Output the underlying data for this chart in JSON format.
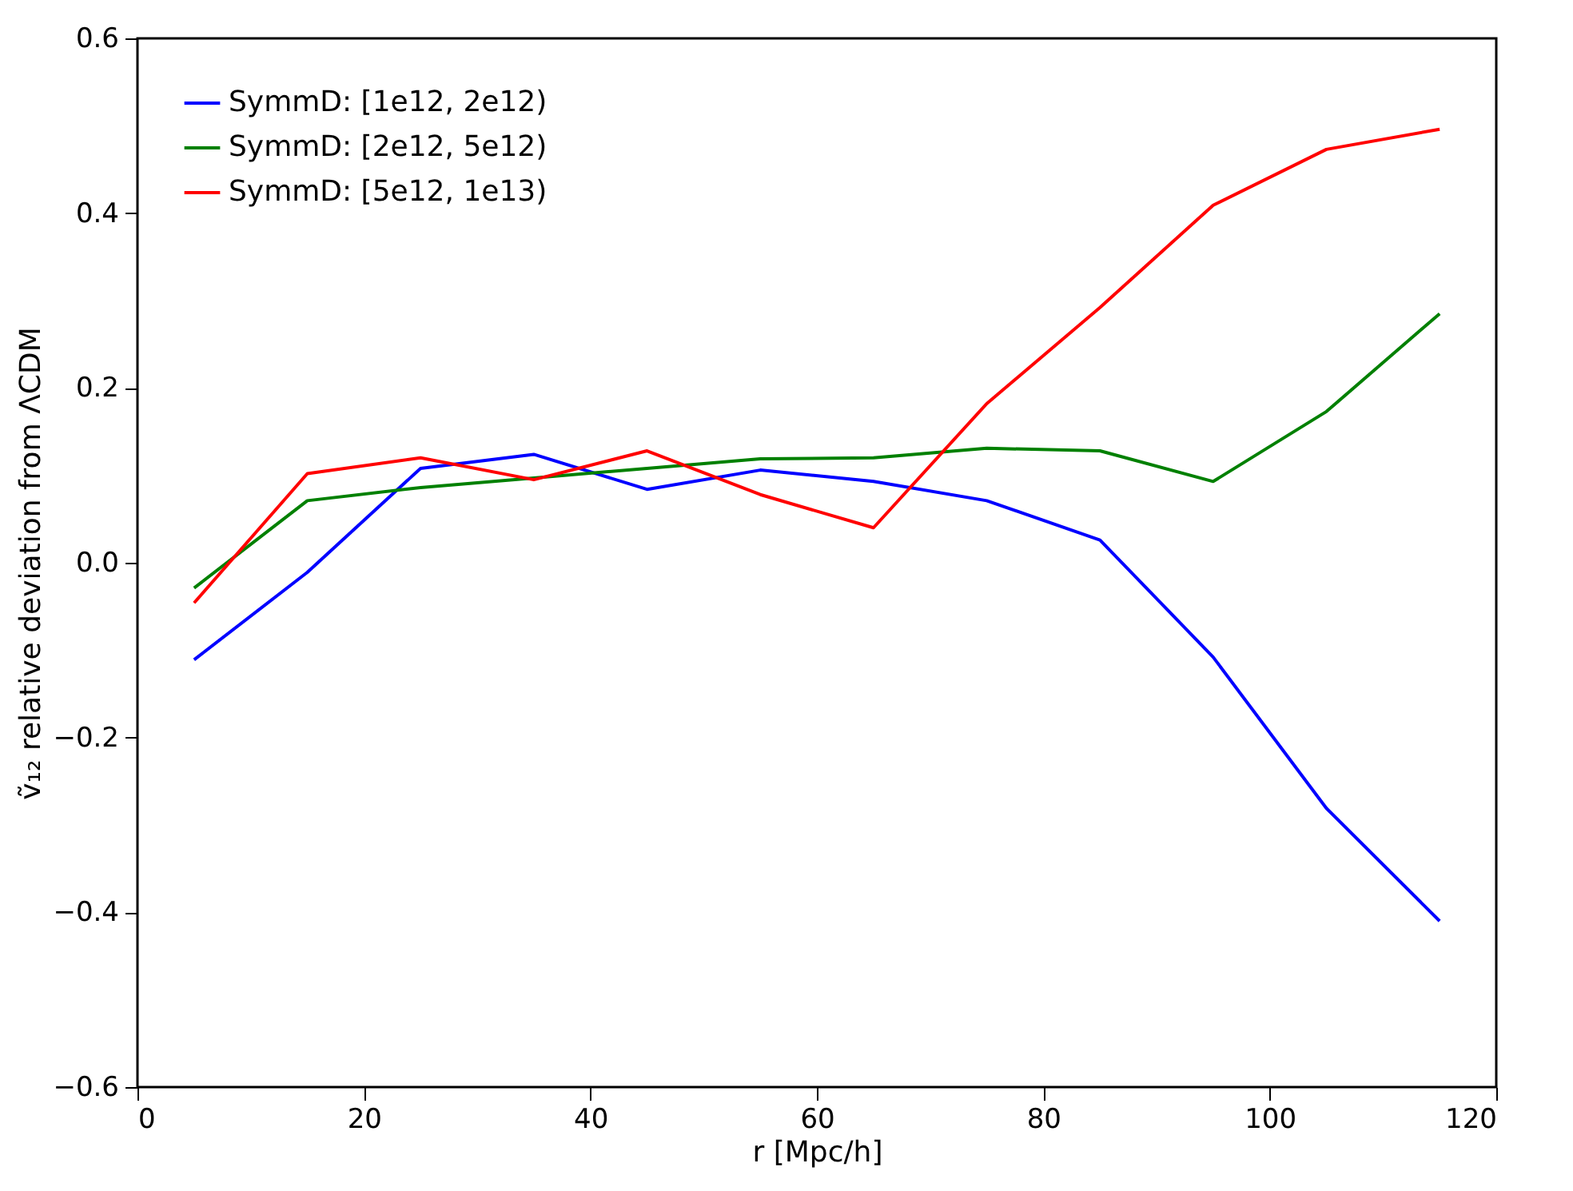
{
  "chart_data": {
    "type": "line",
    "xlabel": "r [Mpc/h]",
    "ylabel": "ṽ₁₂ relative deviation from ΛCDM",
    "x": [
      5,
      15,
      25,
      35,
      45,
      55,
      65,
      75,
      85,
      95,
      105,
      115
    ],
    "series": [
      {
        "name": "SymmD: [1e12, 2e12)",
        "color": "#0000ff",
        "values": [
          -0.111,
          -0.011,
          0.108,
          0.124,
          0.084,
          0.106,
          0.093,
          0.071,
          0.026,
          -0.108,
          -0.281,
          -0.41
        ]
      },
      {
        "name": "SymmD: [2e12, 5e12)",
        "color": "#008000",
        "values": [
          -0.029,
          0.071,
          0.086,
          0.097,
          0.108,
          0.119,
          0.12,
          0.131,
          0.128,
          0.093,
          0.173,
          0.285
        ]
      },
      {
        "name": "SymmD: [5e12, 1e13)",
        "color": "#ff0000",
        "values": [
          -0.046,
          0.102,
          0.12,
          0.095,
          0.128,
          0.078,
          0.04,
          0.182,
          0.292,
          0.409,
          0.473,
          0.496
        ]
      }
    ],
    "xlim": [
      0,
      120
    ],
    "xticks": [
      0,
      20,
      40,
      60,
      80,
      100,
      120
    ],
    "ylim": [
      -0.6,
      0.6
    ],
    "yticks": [
      {
        "value": -0.6,
        "label": "−0.6"
      },
      {
        "value": -0.4,
        "label": "−0.4"
      },
      {
        "value": -0.2,
        "label": "−0.2"
      },
      {
        "value": 0,
        "label": "0.0"
      },
      {
        "value": 0.2,
        "label": "0.2"
      },
      {
        "value": 0.4,
        "label": "0.4"
      },
      {
        "value": 0.6,
        "label": "0.6"
      }
    ],
    "grid": false,
    "legend": "top left",
    "line_style": "solid",
    "marker": "none"
  }
}
